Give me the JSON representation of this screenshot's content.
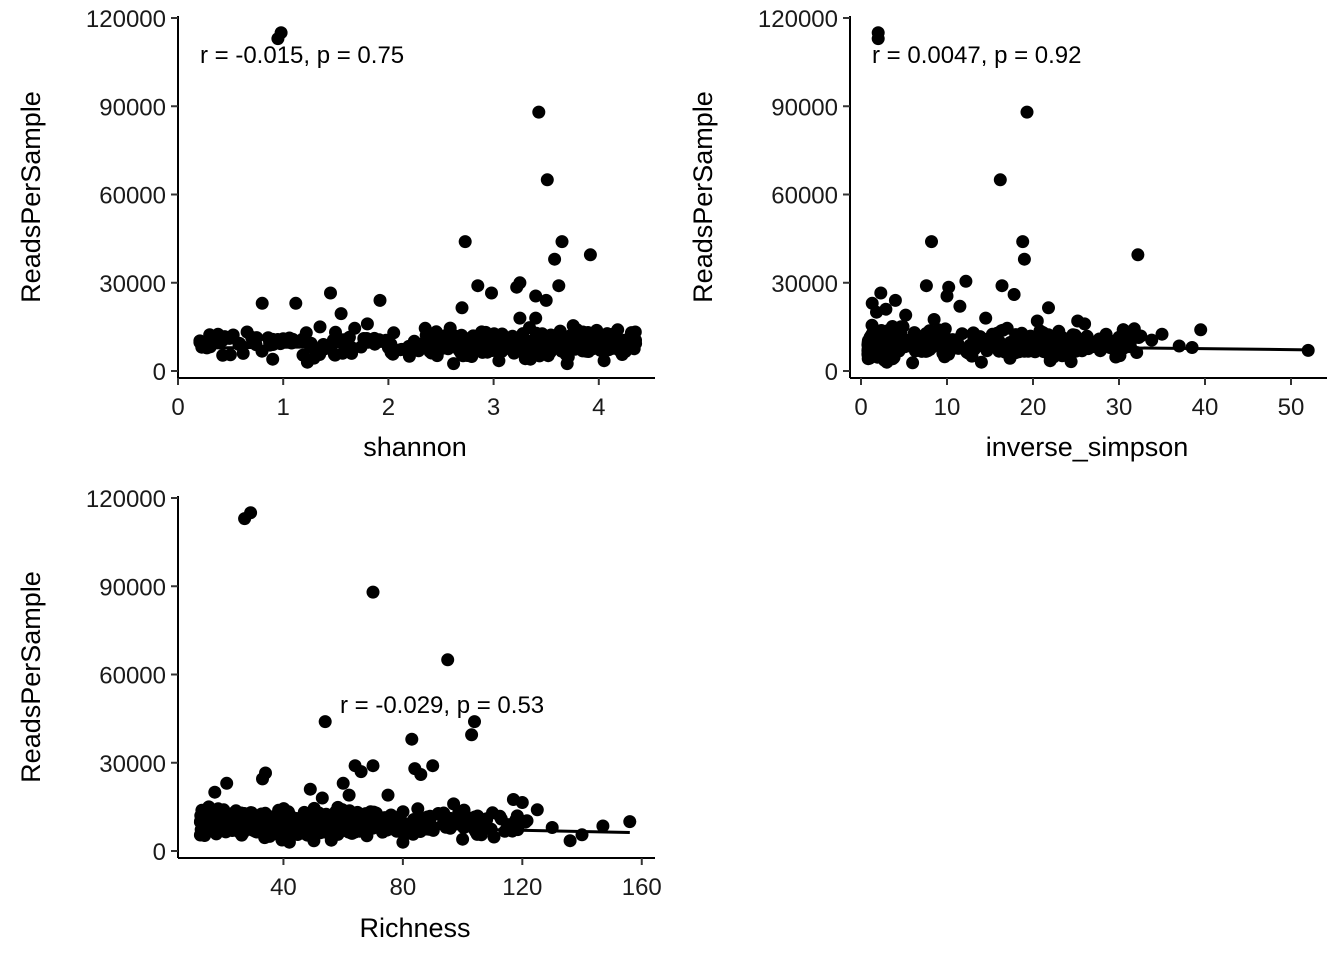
{
  "chart_data": [
    {
      "type": "scatter",
      "xlabel": "shannon",
      "ylabel": "ReadsPerSample",
      "annotation": "r = -0.015, p = 0.75",
      "xlim": [
        0,
        4.6
      ],
      "ylim": [
        0,
        120000
      ],
      "xticks": [
        "0",
        "1",
        "2",
        "3",
        "4"
      ],
      "yticks": [
        "0",
        "30000",
        "60000",
        "90000",
        "120000"
      ],
      "trend": {
        "x": [
          0.18,
          4.35
        ],
        "y": [
          7800,
          9200
        ]
      },
      "points": [
        {
          "x": 0.95,
          "y": 113000
        },
        {
          "x": 0.98,
          "y": 115000
        },
        {
          "x": 3.43,
          "y": 88000
        },
        {
          "x": 3.51,
          "y": 65000
        },
        {
          "x": 2.73,
          "y": 44000
        },
        {
          "x": 3.65,
          "y": 44000
        },
        {
          "x": 3.92,
          "y": 39500
        },
        {
          "x": 3.58,
          "y": 38000
        },
        {
          "x": 3.62,
          "y": 29000
        },
        {
          "x": 2.85,
          "y": 29000
        },
        {
          "x": 3.25,
          "y": 30000
        },
        {
          "x": 3.22,
          "y": 28500
        },
        {
          "x": 2.98,
          "y": 26500
        },
        {
          "x": 3.4,
          "y": 25500
        },
        {
          "x": 3.5,
          "y": 24000
        },
        {
          "x": 1.45,
          "y": 26500
        },
        {
          "x": 1.92,
          "y": 24000
        },
        {
          "x": 0.8,
          "y": 23000
        },
        {
          "x": 1.12,
          "y": 23000
        },
        {
          "x": 2.7,
          "y": 21500
        },
        {
          "x": 1.55,
          "y": 19500
        },
        {
          "x": 3.4,
          "y": 18000
        },
        {
          "x": 3.25,
          "y": 18000
        },
        {
          "x": 1.68,
          "y": 14500
        },
        {
          "x": 2.05,
          "y": 13000
        },
        {
          "x": 4.18,
          "y": 14000
        },
        {
          "x": 3.8,
          "y": 13500
        },
        {
          "x": 2.35,
          "y": 14500
        },
        {
          "x": 1.8,
          "y": 16000
        },
        {
          "x": 0.38,
          "y": 12500
        },
        {
          "x": 0.7,
          "y": 11500
        },
        {
          "x": 1.22,
          "y": 13000
        },
        {
          "x": 1.35,
          "y": 15000
        },
        {
          "x": 0.58,
          "y": 9000
        },
        {
          "x": 0.62,
          "y": 6000
        },
        {
          "x": 0.9,
          "y": 4000
        },
        {
          "x": 1.23,
          "y": 3000
        },
        {
          "x": 2.62,
          "y": 2500
        },
        {
          "x": 3.05,
          "y": 3500
        },
        {
          "x": 3.35,
          "y": 4000
        },
        {
          "x": 3.7,
          "y": 2500
        },
        {
          "x": 4.05,
          "y": 3500
        },
        {
          "x": 2.2,
          "y": 5000
        },
        {
          "x": 2.45,
          "y": 7000
        },
        {
          "x": 1.65,
          "y": 6000
        }
      ],
      "cloud": {
        "x": [
          0.2,
          4.35
        ],
        "y": [
          3000,
          16000
        ],
        "count": 420,
        "dense_from": 2.4
      }
    },
    {
      "type": "scatter",
      "xlabel": "inverse_simpson",
      "ylabel": "ReadsPerSample",
      "annotation": "r = 0.0047, p = 0.92",
      "xlim": [
        0,
        54
      ],
      "ylim": [
        0,
        120000
      ],
      "xticks": [
        "0",
        "10",
        "20",
        "30",
        "40",
        "50"
      ],
      "yticks": [
        "0",
        "30000",
        "60000",
        "90000",
        "120000"
      ],
      "trend": {
        "x": [
          0.8,
          52
        ],
        "y": [
          8800,
          7200
        ]
      },
      "points": [
        {
          "x": 2.0,
          "y": 113000
        },
        {
          "x": 2.0,
          "y": 115000
        },
        {
          "x": 19.3,
          "y": 88000
        },
        {
          "x": 16.2,
          "y": 65000
        },
        {
          "x": 8.2,
          "y": 44000
        },
        {
          "x": 18.8,
          "y": 44000
        },
        {
          "x": 32.2,
          "y": 39500
        },
        {
          "x": 19.0,
          "y": 38000
        },
        {
          "x": 16.4,
          "y": 29000
        },
        {
          "x": 7.6,
          "y": 29000
        },
        {
          "x": 12.2,
          "y": 30500
        },
        {
          "x": 10.2,
          "y": 28500
        },
        {
          "x": 2.3,
          "y": 26500
        },
        {
          "x": 17.8,
          "y": 26000
        },
        {
          "x": 10.0,
          "y": 25500
        },
        {
          "x": 4.0,
          "y": 24000
        },
        {
          "x": 11.5,
          "y": 22000
        },
        {
          "x": 1.3,
          "y": 23000
        },
        {
          "x": 21.8,
          "y": 21500
        },
        {
          "x": 2.9,
          "y": 21000
        },
        {
          "x": 1.8,
          "y": 20000
        },
        {
          "x": 5.2,
          "y": 19000
        },
        {
          "x": 14.5,
          "y": 18000
        },
        {
          "x": 8.5,
          "y": 17500
        },
        {
          "x": 20.5,
          "y": 17000
        },
        {
          "x": 25.2,
          "y": 17000
        },
        {
          "x": 26.0,
          "y": 16000
        },
        {
          "x": 9.0,
          "y": 14000
        },
        {
          "x": 17.0,
          "y": 14500
        },
        {
          "x": 23.0,
          "y": 13500
        },
        {
          "x": 31.5,
          "y": 12500
        },
        {
          "x": 35.0,
          "y": 12500
        },
        {
          "x": 39.5,
          "y": 14000
        },
        {
          "x": 37.0,
          "y": 8500
        },
        {
          "x": 38.5,
          "y": 8000
        },
        {
          "x": 52.0,
          "y": 7000
        },
        {
          "x": 33.8,
          "y": 10500
        },
        {
          "x": 30.0,
          "y": 11500
        },
        {
          "x": 28.5,
          "y": 12500
        },
        {
          "x": 3.0,
          "y": 3000
        },
        {
          "x": 6.0,
          "y": 2800
        },
        {
          "x": 14.0,
          "y": 3000
        },
        {
          "x": 22.0,
          "y": 3500
        }
      ],
      "cloud": {
        "x": [
          0.8,
          33
        ],
        "y": [
          2500,
          16000
        ],
        "count": 460,
        "dense_to": 4
      }
    },
    {
      "type": "scatter",
      "xlabel": "Richness",
      "ylabel": "ReadsPerSample",
      "annotation": "r = -0.029, p = 0.53",
      "xlim": [
        8,
        162
      ],
      "ylim": [
        0,
        120000
      ],
      "xticks": [
        "40",
        "80",
        "120",
        "160"
      ],
      "yticks": [
        "0",
        "30000",
        "60000",
        "90000",
        "120000"
      ],
      "trend": {
        "x": [
          12,
          156
        ],
        "y": [
          9300,
          6300
        ]
      },
      "points": [
        {
          "x": 27,
          "y": 113000
        },
        {
          "x": 29,
          "y": 115000
        },
        {
          "x": 70,
          "y": 88000
        },
        {
          "x": 95,
          "y": 65000
        },
        {
          "x": 54,
          "y": 44000
        },
        {
          "x": 104,
          "y": 44000
        },
        {
          "x": 103,
          "y": 39500
        },
        {
          "x": 83,
          "y": 38000
        },
        {
          "x": 70,
          "y": 29000
        },
        {
          "x": 64,
          "y": 29000
        },
        {
          "x": 90,
          "y": 29000
        },
        {
          "x": 84,
          "y": 28000
        },
        {
          "x": 66,
          "y": 27000
        },
        {
          "x": 34,
          "y": 26500
        },
        {
          "x": 33,
          "y": 24500
        },
        {
          "x": 86,
          "y": 26000
        },
        {
          "x": 21,
          "y": 23000
        },
        {
          "x": 60,
          "y": 23000
        },
        {
          "x": 62,
          "y": 19000
        },
        {
          "x": 17,
          "y": 20000
        },
        {
          "x": 49,
          "y": 21000
        },
        {
          "x": 75,
          "y": 19000
        },
        {
          "x": 53,
          "y": 18000
        },
        {
          "x": 117,
          "y": 17500
        },
        {
          "x": 120,
          "y": 16500
        },
        {
          "x": 97,
          "y": 16000
        },
        {
          "x": 125,
          "y": 14000
        },
        {
          "x": 140,
          "y": 5500
        },
        {
          "x": 136,
          "y": 3500
        },
        {
          "x": 147,
          "y": 8500
        },
        {
          "x": 156,
          "y": 10000
        },
        {
          "x": 130,
          "y": 8000
        },
        {
          "x": 15,
          "y": 15000
        },
        {
          "x": 20,
          "y": 14000
        },
        {
          "x": 110,
          "y": 13000
        },
        {
          "x": 42,
          "y": 3000
        },
        {
          "x": 80,
          "y": 3000
        },
        {
          "x": 100,
          "y": 4000
        }
      ],
      "cloud": {
        "x": [
          12,
          122
        ],
        "y": [
          2500,
          16000
        ],
        "count": 470,
        "dense_to": 70
      }
    }
  ]
}
